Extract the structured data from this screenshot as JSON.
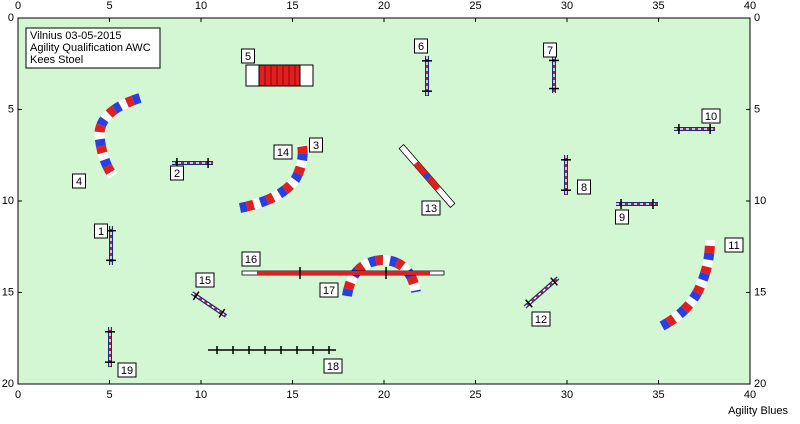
{
  "header": {
    "lines": [
      "Vilnius 03-05-2015",
      "Agility Qualification AWC",
      "Kees Stoel"
    ]
  },
  "axes": {
    "x_ticks": [
      0,
      5,
      10,
      15,
      20,
      25,
      30,
      35,
      40
    ],
    "y_ticks": [
      0,
      5,
      10,
      15,
      20
    ]
  },
  "obstacles": [
    "1",
    "2",
    "3",
    "4",
    "5",
    "6",
    "7",
    "8",
    "9",
    "10",
    "11",
    "12",
    "13",
    "14",
    "15",
    "16",
    "17",
    "18",
    "19"
  ],
  "footer": "Agility Blues"
}
